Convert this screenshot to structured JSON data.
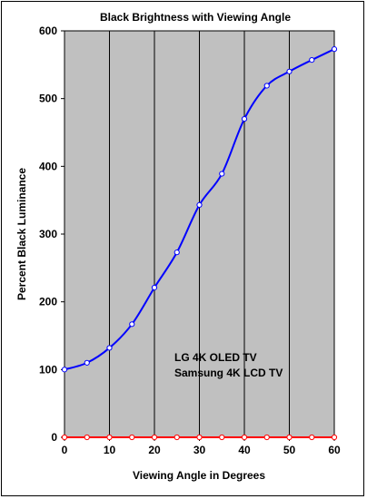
{
  "chart_data": {
    "type": "line",
    "title": "Black Brightness with Viewing Angle",
    "xlabel": "Viewing Angle in Degrees",
    "ylabel": "Percent Black Luminance",
    "xlim": [
      0,
      60
    ],
    "ylim": [
      0,
      600
    ],
    "x_ticks": [
      0,
      10,
      20,
      30,
      40,
      50,
      60
    ],
    "y_ticks": [
      0,
      100,
      200,
      300,
      400,
      500,
      600
    ],
    "grid": "vertical",
    "plot_background": "#c0c0c0",
    "legend_placement": "bottom-center",
    "series": [
      {
        "name": "LG 4K OLED TV",
        "color": "#ff0000",
        "x": [
          0,
          5,
          10,
          15,
          20,
          25,
          30,
          35,
          40,
          45,
          50,
          55,
          60
        ],
        "y": [
          0,
          0,
          0,
          0,
          0,
          0,
          0,
          0,
          0,
          0,
          0,
          0,
          0
        ]
      },
      {
        "name": "Samsung 4K LCD TV",
        "color": "#0000ff",
        "x": [
          0,
          5,
          10,
          15,
          20,
          25,
          30,
          35,
          40,
          45,
          50,
          55,
          60
        ],
        "y": [
          100,
          110,
          132,
          167,
          221,
          273,
          343,
          389,
          470,
          519,
          540,
          557,
          573
        ]
      }
    ]
  }
}
